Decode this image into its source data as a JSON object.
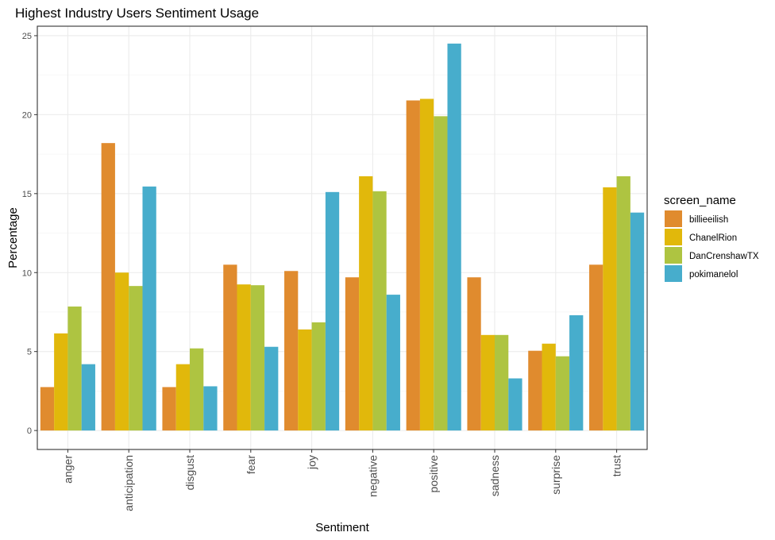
{
  "chart_data": {
    "type": "bar",
    "title": "Highest Industry Users Sentiment Usage",
    "xlabel": "Sentiment",
    "ylabel": "Percentage",
    "ylim": [
      -1.2,
      25.6
    ],
    "yticks": [
      0,
      5,
      10,
      15,
      20,
      25
    ],
    "grid": true,
    "legend": {
      "title": "screen_name",
      "position": "right"
    },
    "categories": [
      "anger",
      "anticipation",
      "disgust",
      "fear",
      "joy",
      "negative",
      "positive",
      "sadness",
      "surprise",
      "trust"
    ],
    "series": [
      {
        "name": "billieeilish",
        "color": "#e08b2e",
        "values": [
          2.75,
          18.2,
          2.75,
          10.5,
          10.1,
          9.7,
          20.9,
          9.7,
          5.05,
          10.5
        ]
      },
      {
        "name": "ChanelRion",
        "color": "#e1b80b",
        "values": [
          6.15,
          10.0,
          4.2,
          9.25,
          6.4,
          16.1,
          21.0,
          6.05,
          5.5,
          15.4
        ]
      },
      {
        "name": "DanCrenshawTX",
        "color": "#aec441",
        "values": [
          7.85,
          9.15,
          5.2,
          9.2,
          6.85,
          15.15,
          19.9,
          6.05,
          4.7,
          16.1
        ]
      },
      {
        "name": "pokimanelol",
        "color": "#47adcc",
        "values": [
          4.2,
          15.45,
          2.8,
          5.3,
          15.1,
          8.6,
          24.5,
          3.3,
          7.3,
          13.8
        ]
      }
    ]
  }
}
